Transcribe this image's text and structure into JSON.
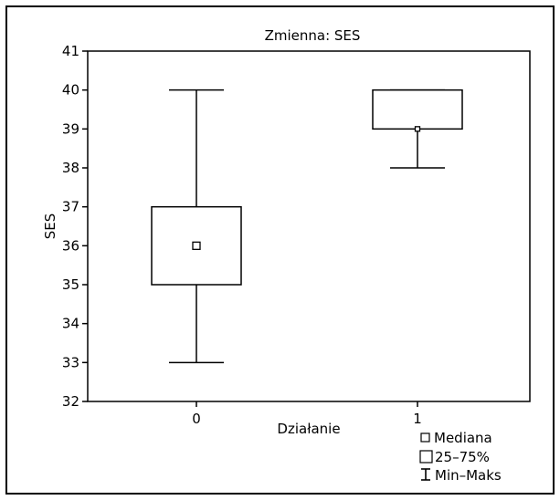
{
  "chart_data": {
    "type": "boxplot",
    "title": "Zmienna: SES",
    "xlabel": "Działanie",
    "ylabel": "SES",
    "ylim": [
      32,
      41
    ],
    "yticks": [
      32,
      33,
      34,
      35,
      36,
      37,
      38,
      39,
      40,
      41
    ],
    "categories": [
      "0",
      "1"
    ],
    "boxes": [
      {
        "category": "0",
        "min": 33,
        "q1": 35,
        "median": 36,
        "q3": 37,
        "max": 40
      },
      {
        "category": "1",
        "min": 38,
        "q1": 39,
        "median": 39,
        "q3": 40,
        "max": 40
      }
    ],
    "legend": {
      "placement": "bottom-right",
      "entries": [
        "Mediana",
        "25–75%",
        "Min–Maks"
      ]
    },
    "grid": false
  }
}
